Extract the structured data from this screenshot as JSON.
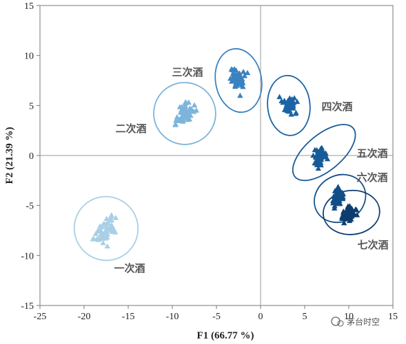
{
  "chart_data": {
    "type": "scatter",
    "xlabel": "F1 (66.77 %)",
    "ylabel": "F2 (21.39 %)",
    "xlim": [
      -25,
      15
    ],
    "ylim": [
      -15,
      15
    ],
    "xticks": [
      -25,
      -20,
      -15,
      -10,
      -5,
      0,
      5,
      10,
      15
    ],
    "yticks": [
      -15,
      -10,
      -5,
      0,
      5,
      10,
      15
    ],
    "grid": false,
    "marker": "triangle",
    "groups": [
      {
        "label": "一次酒",
        "color": "#a9cfe6",
        "center": [
          -17.5,
          -7.5
        ],
        "spread": [
          1.6,
          1.5
        ],
        "tilt": 0.8,
        "n": 55,
        "ellipse": {
          "cx": -17.5,
          "cy": -7.3,
          "rx": 3.6,
          "ry": 3.2,
          "angle": 38
        }
      },
      {
        "label": "二次酒",
        "color": "#7db4da",
        "center": [
          -8.6,
          4.2
        ],
        "spread": [
          1.4,
          1.2
        ],
        "tilt": 0.9,
        "n": 55,
        "ellipse": {
          "cx": -8.6,
          "cy": 4.2,
          "rx": 3.5,
          "ry": 3.1,
          "angle": 40
        }
      },
      {
        "label": "三次酒",
        "color": "#3a82c0",
        "center": [
          -2.5,
          7.6
        ],
        "spread": [
          1.1,
          1.3
        ],
        "tilt": 0.2,
        "n": 60,
        "ellipse": {
          "cx": -2.5,
          "cy": 7.5,
          "rx": 2.6,
          "ry": 3.2,
          "angle": 10
        }
      },
      {
        "label": "四次酒",
        "color": "#1c63a6",
        "center": [
          3.2,
          5.1
        ],
        "spread": [
          1.0,
          1.2
        ],
        "tilt": -0.3,
        "n": 55,
        "ellipse": {
          "cx": 3.2,
          "cy": 5.0,
          "rx": 2.4,
          "ry": 3.0,
          "angle": 5
        }
      },
      {
        "label": "五次酒",
        "color": "#175a98",
        "center": [
          6.6,
          -0.2
        ],
        "spread": [
          0.9,
          1.0
        ],
        "tilt": 0.6,
        "n": 55,
        "ellipse": {
          "cx": 7.2,
          "cy": 0.3,
          "rx": 4.3,
          "ry": 1.8,
          "angle": 40
        }
      },
      {
        "label": "六次酒",
        "color": "#124e88",
        "center": [
          8.8,
          -4.2
        ],
        "spread": [
          0.9,
          1.0
        ],
        "tilt": 0.6,
        "n": 55,
        "ellipse": {
          "cx": 9.0,
          "cy": -4.3,
          "rx": 3.0,
          "ry": 2.3,
          "angle": 30
        }
      },
      {
        "label": "七次酒",
        "color": "#0d3d6f",
        "center": [
          10.0,
          -5.8
        ],
        "spread": [
          0.9,
          1.0
        ],
        "tilt": 0.4,
        "n": 60,
        "ellipse": {
          "cx": 10.3,
          "cy": -5.7,
          "rx": 3.2,
          "ry": 2.2,
          "angle": 5
        }
      }
    ]
  },
  "watermark": {
    "text": "茅台时空"
  }
}
